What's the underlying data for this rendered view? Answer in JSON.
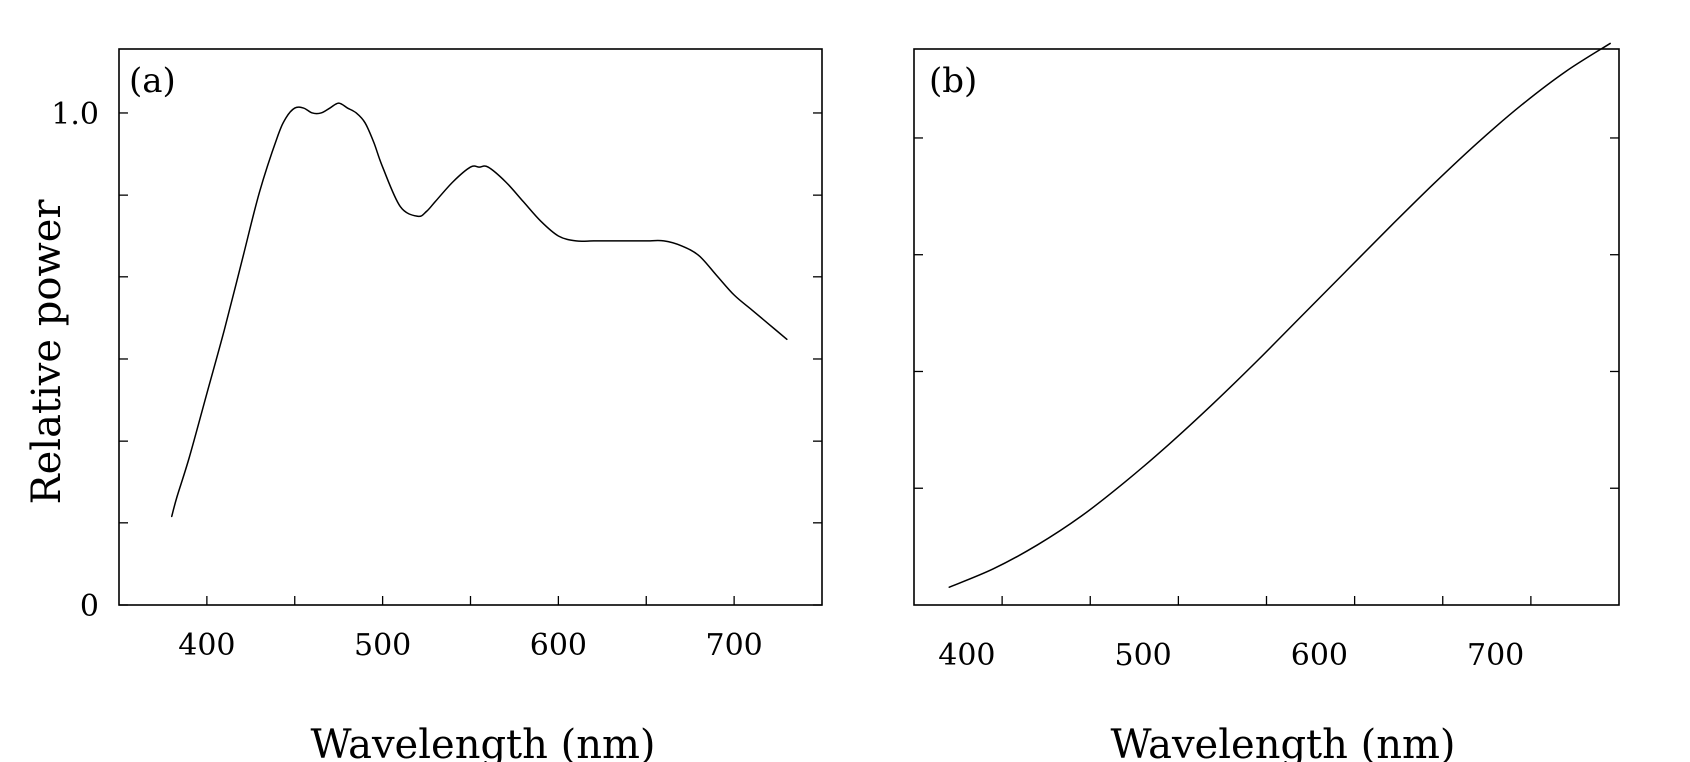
{
  "chart_data": [
    {
      "type": "line",
      "panel_label": "(a)",
      "xlabel": "Wavelength (nm)",
      "ylabel": "Relative power",
      "xlim": [
        350,
        750
      ],
      "ylim": [
        0,
        1.13
      ],
      "xticks": [
        400,
        450,
        500,
        550,
        600,
        650,
        700
      ],
      "xtick_labels": [
        "400",
        "500",
        "600",
        "700"
      ],
      "xtick_label_values": [
        400,
        500,
        600,
        700
      ],
      "yticks": [
        0,
        0.167,
        0.333,
        0.5,
        0.667,
        0.833,
        1.0
      ],
      "ytick_labels": [
        "0",
        "1.0"
      ],
      "ytick_label_values": [
        0,
        1.0
      ],
      "series": [
        {
          "x": [
            380,
            383,
            390,
            400,
            410,
            420,
            430,
            440,
            445,
            450,
            455,
            460,
            465,
            470,
            475,
            480,
            485,
            490,
            495,
            500,
            510,
            520,
            525,
            530,
            540,
            550,
            555,
            560,
            570,
            580,
            590,
            600,
            610,
            620,
            630,
            640,
            650,
            660,
            670,
            680,
            690,
            700,
            710,
            720,
            730
          ],
          "y": [
            0.18,
            0.22,
            0.3,
            0.43,
            0.56,
            0.7,
            0.84,
            0.95,
            0.99,
            1.01,
            1.01,
            1.0,
            1.0,
            1.01,
            1.02,
            1.01,
            1.0,
            0.98,
            0.94,
            0.89,
            0.81,
            0.79,
            0.8,
            0.82,
            0.86,
            0.89,
            0.89,
            0.89,
            0.86,
            0.82,
            0.78,
            0.75,
            0.74,
            0.74,
            0.74,
            0.74,
            0.74,
            0.74,
            0.73,
            0.71,
            0.67,
            0.63,
            0.6,
            0.57,
            0.54
          ]
        }
      ]
    },
    {
      "type": "line",
      "panel_label": "(b)",
      "xlabel": "Wavelength (nm)",
      "xlim": [
        375,
        775
      ],
      "ylim": [
        0,
        1.0
      ],
      "xticks": [
        425,
        475,
        525,
        575,
        625,
        675,
        725
      ],
      "xtick_labels": [
        "400",
        "500",
        "600",
        "700"
      ],
      "xtick_label_values": [
        405,
        505,
        605,
        705
      ],
      "yticks": [
        0.21,
        0.42,
        0.63,
        0.84
      ],
      "ytick_labels": [],
      "series": [
        {
          "x": [
            395,
            420,
            445,
            470,
            495,
            520,
            545,
            570,
            595,
            620,
            645,
            670,
            695,
            720,
            745,
            770
          ],
          "y": [
            0.032,
            0.065,
            0.108,
            0.16,
            0.222,
            0.29,
            0.363,
            0.44,
            0.52,
            0.6,
            0.68,
            0.758,
            0.832,
            0.9,
            0.96,
            1.01
          ]
        }
      ]
    }
  ]
}
